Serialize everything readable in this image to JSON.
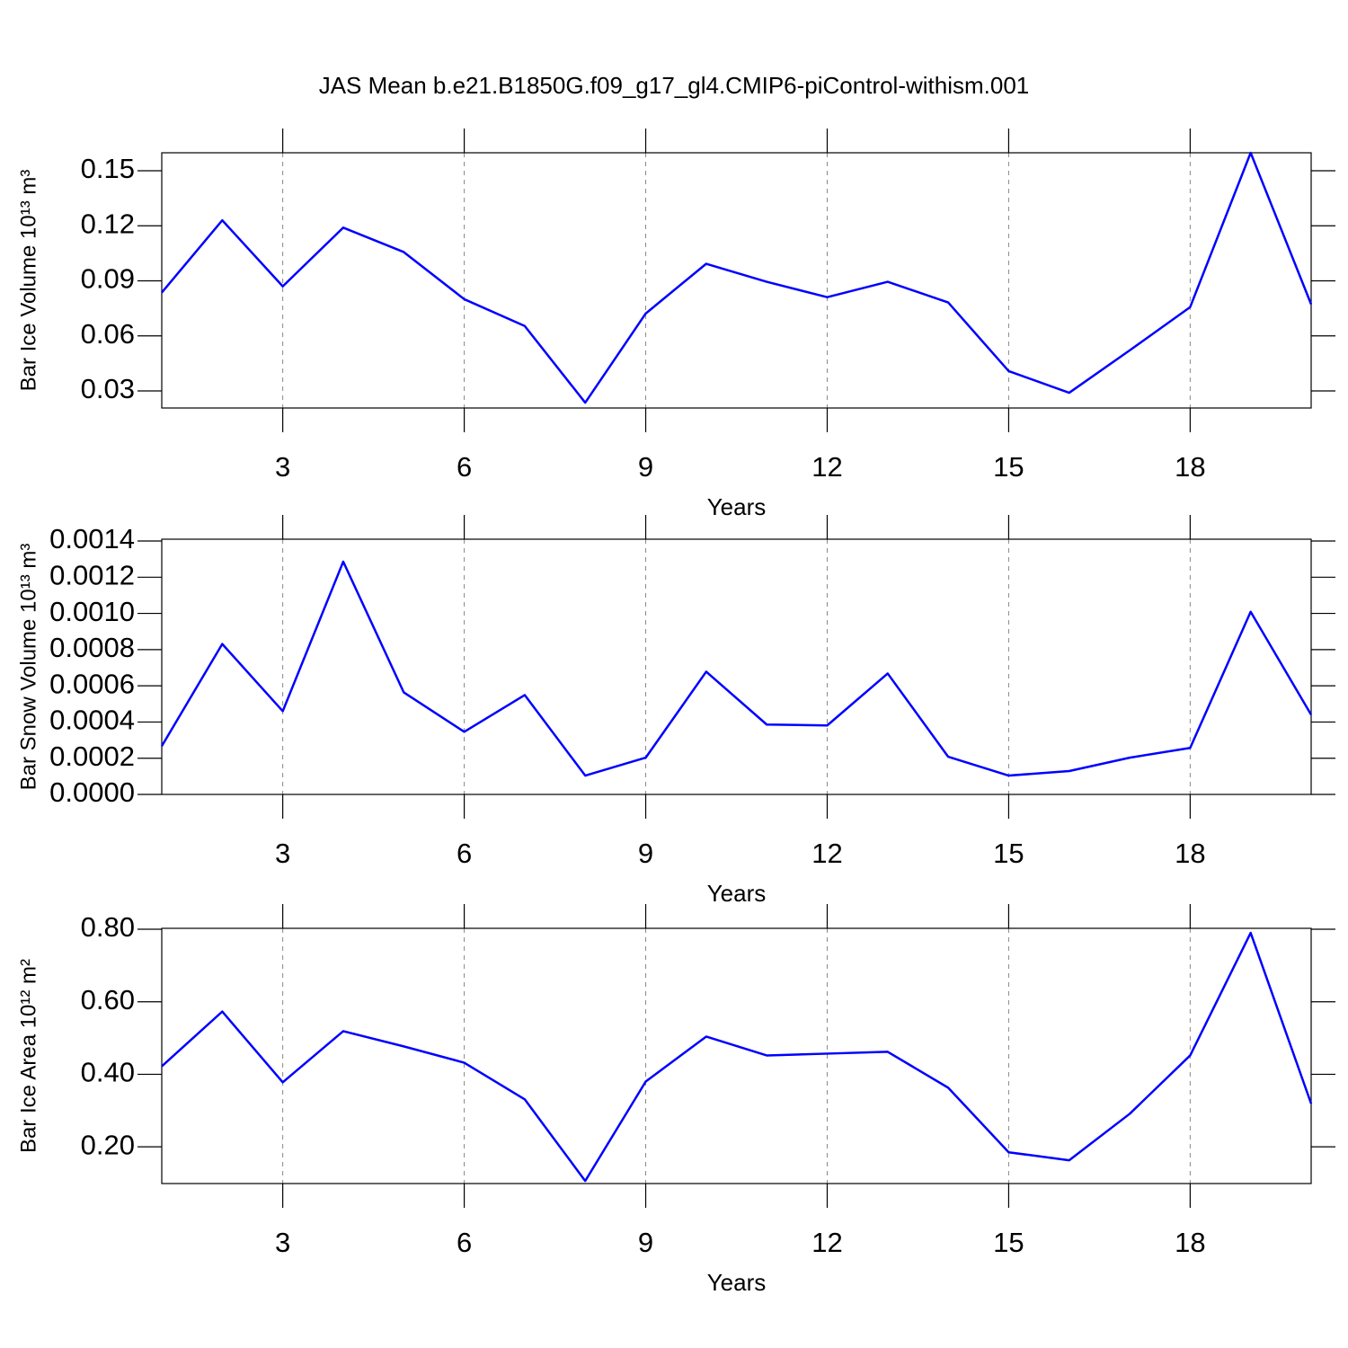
{
  "title": "JAS Mean b.e21.B1850G.f09_g17_gl4.CMIP6-piControl-withism.001",
  "chart_data": [
    {
      "type": "line",
      "xlabel": "Years",
      "ylabel": "Bar Ice Volume 10¹³ m³",
      "color": "#0000ff",
      "grid": true,
      "x": [
        1,
        2,
        3,
        4,
        5,
        6,
        7,
        8,
        9,
        10,
        11,
        12,
        13,
        14,
        15,
        16,
        17,
        18,
        19,
        20
      ],
      "values": [
        0.0836,
        0.123,
        0.087,
        0.119,
        0.1057,
        0.08,
        0.0654,
        0.0236,
        0.0722,
        0.0993,
        0.0895,
        0.0811,
        0.0895,
        0.0782,
        0.0408,
        0.029,
        0.0521,
        0.0757,
        0.1598,
        0.0772
      ],
      "xlim": [
        1,
        20
      ],
      "xticks": [
        3,
        6,
        9,
        12,
        15,
        18
      ],
      "ylim": [
        0.0207,
        0.1598
      ],
      "yticks": [
        0.03,
        0.06,
        0.09,
        0.12,
        0.15
      ]
    },
    {
      "type": "line",
      "xlabel": "Years",
      "ylabel": "Bar Snow Volume 10¹³ m³",
      "color": "#0000ff",
      "grid": true,
      "x": [
        1,
        2,
        3,
        4,
        5,
        6,
        7,
        8,
        9,
        10,
        11,
        12,
        13,
        14,
        15,
        16,
        17,
        18,
        19,
        20
      ],
      "values": [
        0.000267,
        0.000831,
        0.00046,
        0.001286,
        0.000564,
        0.000346,
        0.000549,
        0.000104,
        0.000203,
        0.000678,
        0.000386,
        0.000381,
        0.000668,
        0.000208,
        0.000104,
        0.000129,
        0.000203,
        0.000257,
        0.001009,
        0.00044
      ],
      "xlim": [
        1,
        20
      ],
      "xticks": [
        3,
        6,
        9,
        12,
        15,
        18
      ],
      "ylim": [
        0,
        0.00141
      ],
      "yticks": [
        {
          "value": 0,
          "label": "0.0000"
        },
        0.0002,
        0.0004,
        0.0006,
        0.0008,
        {
          "value": 0.001,
          "label": "0.0010"
        },
        0.0012,
        0.0014
      ]
    },
    {
      "type": "line",
      "xlabel": "Years",
      "ylabel": "Bar Ice Area 10¹² m²",
      "color": "#0000ff",
      "grid": true,
      "x": [
        1,
        2,
        3,
        4,
        5,
        6,
        7,
        8,
        9,
        10,
        11,
        12,
        13,
        14,
        15,
        16,
        17,
        18,
        19,
        20
      ],
      "values": [
        0.422,
        0.573,
        0.378,
        0.519,
        0.477,
        0.432,
        0.331,
        0.106,
        0.38,
        0.504,
        0.452,
        0.457,
        0.462,
        0.363,
        0.185,
        0.163,
        0.291,
        0.452,
        0.79,
        0.319
      ],
      "xlim": [
        1,
        20
      ],
      "xticks": [
        3,
        6,
        9,
        12,
        15,
        18
      ],
      "ylim": [
        0.0988,
        0.8025
      ],
      "yticks": [
        {
          "value": 0.2,
          "label": "0.20"
        },
        {
          "value": 0.4,
          "label": "0.40"
        },
        {
          "value": 0.6,
          "label": "0.60"
        },
        {
          "value": 0.8,
          "label": "0.80"
        }
      ]
    }
  ]
}
